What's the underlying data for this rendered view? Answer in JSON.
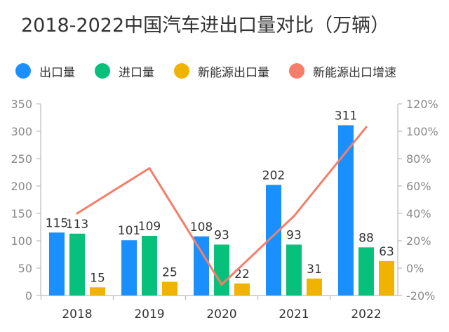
{
  "chart_data": {
    "type": "bar",
    "title": "2018-2022中国汽车进出口量对比（万辆）",
    "categories": [
      "2018",
      "2019",
      "2020",
      "2021",
      "2022"
    ],
    "series": [
      {
        "name": "出口量",
        "type": "bar",
        "axis": "left",
        "color": "#1a90ff",
        "values": [
          115,
          101,
          108,
          202,
          311
        ]
      },
      {
        "name": "进口量",
        "type": "bar",
        "axis": "left",
        "color": "#06c07c",
        "values": [
          113,
          109,
          93,
          93,
          88
        ]
      },
      {
        "name": "新能源出口量",
        "type": "bar",
        "axis": "left",
        "color": "#f0b400",
        "values": [
          15,
          25,
          22,
          31,
          63
        ]
      },
      {
        "name": "新能源出口增速",
        "type": "line",
        "axis": "right",
        "color": "#f57e6a",
        "values": [
          40,
          73,
          -12,
          38,
          103
        ]
      }
    ],
    "y_left": {
      "min": 0,
      "max": 350,
      "ticks": [
        "0",
        "50",
        "100",
        "150",
        "200",
        "250",
        "300",
        "350"
      ]
    },
    "y_right": {
      "min": -20,
      "max": 120,
      "ticks": [
        "-20%",
        "0%",
        "20%",
        "40%",
        "60%",
        "80%",
        "100%",
        "120%"
      ]
    },
    "grid": false,
    "legend_position": "top"
  }
}
